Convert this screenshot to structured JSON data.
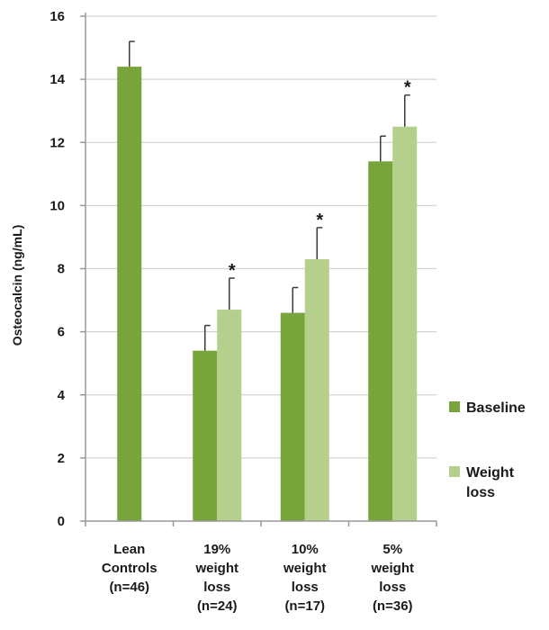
{
  "chart_data": {
    "type": "bar",
    "title": "",
    "xlabel": "",
    "ylabel": "Osteocalcin (ng/mL)",
    "ylim": [
      0,
      16
    ],
    "yticks": [
      0,
      2,
      4,
      6,
      8,
      10,
      12,
      14,
      16
    ],
    "grid": true,
    "legend_position": "right",
    "categories": [
      [
        "Lean",
        "Controls",
        "(n=46)"
      ],
      [
        "19%",
        "weight",
        "loss",
        "(n=24)"
      ],
      [
        "10%",
        "weight",
        "loss",
        "(n=17)"
      ],
      [
        "5%",
        "weight",
        "loss",
        "(n=36)"
      ]
    ],
    "series": [
      {
        "name": "Baseline",
        "color": "#77a43b",
        "values": [
          14.4,
          5.4,
          6.6,
          11.4
        ],
        "error": [
          0.8,
          0.8,
          0.8,
          0.8
        ],
        "annotations": [
          "",
          "",
          "",
          ""
        ]
      },
      {
        "name": "Weight loss",
        "color": "#b5cf8c",
        "values": [
          null,
          6.7,
          8.3,
          12.5
        ],
        "error": [
          null,
          1.0,
          1.0,
          1.0
        ],
        "annotations": [
          "",
          "*",
          "*",
          "*"
        ]
      }
    ]
  }
}
